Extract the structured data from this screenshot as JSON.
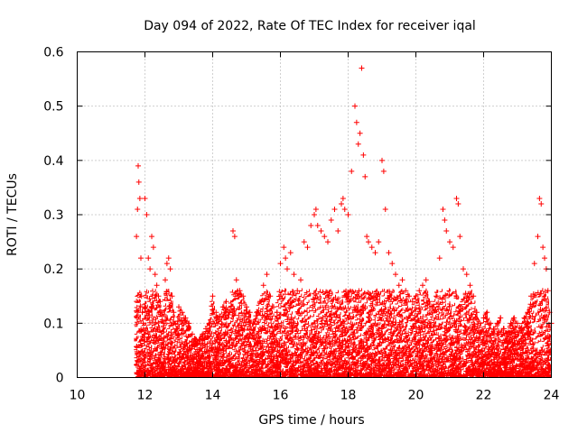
{
  "chart_data": {
    "type": "scatter",
    "title": "Day 094 of 2022, Rate Of TEC Index for receiver iqal",
    "xlabel": "GPS time / hours",
    "ylabel": "ROTI / TECUs",
    "xlim": [
      10,
      24
    ],
    "ylim": [
      0,
      0.6
    ],
    "xticks": [
      10,
      12,
      14,
      16,
      18,
      20,
      22,
      24
    ],
    "yticks": [
      0,
      0.1,
      0.2,
      0.3,
      0.4,
      0.5,
      0.6
    ],
    "xtick_labels": [
      "10",
      "12",
      "14",
      "16",
      "18",
      "20",
      "22",
      "24"
    ],
    "ytick_labels": [
      "0",
      "0.1",
      "0.2",
      "0.3",
      "0.4",
      "0.5",
      "0.6"
    ],
    "grid": true,
    "marker": "+",
    "marker_color": "#ff0000",
    "series": [
      {
        "x": [
          11.75,
          11.78,
          11.8,
          11.82,
          11.85,
          11.88,
          11.9,
          11.92,
          11.95,
          11.98,
          12.0,
          12.05,
          12.1,
          12.15,
          12.2,
          12.25,
          12.3,
          12.35,
          12.4,
          12.45,
          12.5,
          12.55,
          12.6,
          12.65,
          12.7,
          12.75,
          12.8,
          12.85,
          12.9,
          12.95,
          13.0,
          13.1,
          13.2,
          13.3,
          13.4,
          13.5,
          13.6,
          13.7,
          13.8,
          13.9,
          14.0,
          14.1,
          14.2,
          14.3,
          14.4,
          14.5,
          14.6,
          14.65,
          14.7,
          14.8,
          14.9,
          15.0,
          15.1,
          15.2,
          15.3,
          15.4,
          15.5,
          15.6,
          15.7,
          15.8,
          15.9,
          16.0,
          16.1,
          16.15,
          16.2,
          16.3,
          16.4,
          16.5,
          16.6,
          16.7,
          16.8,
          16.9,
          17.0,
          17.05,
          17.1,
          17.2,
          17.3,
          17.4,
          17.5,
          17.6,
          17.7,
          17.8,
          17.85,
          17.9,
          18.0,
          18.1,
          18.2,
          18.25,
          18.3,
          18.35,
          18.4,
          18.45,
          18.5,
          18.55,
          18.6,
          18.7,
          18.8,
          18.9,
          19.0,
          19.05,
          19.1,
          19.2,
          19.3,
          19.4,
          19.5,
          19.6,
          19.7,
          19.8,
          19.9,
          20.0,
          20.1,
          20.2,
          20.3,
          20.4,
          20.5,
          20.6,
          20.7,
          20.8,
          20.85,
          20.9,
          21.0,
          21.1,
          21.2,
          21.25,
          21.3,
          21.4,
          21.5,
          21.6,
          21.7,
          21.8,
          21.9,
          22.0,
          22.1,
          22.2,
          22.3,
          22.4,
          22.5,
          22.6,
          22.7,
          22.8,
          22.9,
          23.0,
          23.1,
          23.2,
          23.3,
          23.4,
          23.5,
          23.6,
          23.65,
          23.7,
          23.75,
          23.8,
          23.85,
          23.9,
          23.95,
          24.0
        ],
        "y": [
          0.26,
          0.31,
          0.39,
          0.36,
          0.33,
          0.22,
          0.15,
          0.12,
          0.1,
          0.08,
          0.33,
          0.3,
          0.22,
          0.2,
          0.26,
          0.24,
          0.19,
          0.17,
          0.15,
          0.14,
          0.12,
          0.1,
          0.18,
          0.21,
          0.22,
          0.2,
          0.15,
          0.12,
          0.1,
          0.09,
          0.13,
          0.12,
          0.11,
          0.1,
          0.08,
          0.07,
          0.07,
          0.08,
          0.09,
          0.1,
          0.15,
          0.12,
          0.11,
          0.13,
          0.14,
          0.12,
          0.27,
          0.26,
          0.18,
          0.16,
          0.15,
          0.13,
          0.12,
          0.1,
          0.12,
          0.14,
          0.17,
          0.19,
          0.15,
          0.13,
          0.12,
          0.21,
          0.24,
          0.22,
          0.2,
          0.23,
          0.19,
          0.16,
          0.18,
          0.25,
          0.24,
          0.28,
          0.3,
          0.31,
          0.28,
          0.27,
          0.26,
          0.25,
          0.29,
          0.31,
          0.27,
          0.32,
          0.33,
          0.31,
          0.3,
          0.38,
          0.5,
          0.47,
          0.43,
          0.45,
          0.57,
          0.41,
          0.37,
          0.26,
          0.25,
          0.24,
          0.23,
          0.25,
          0.4,
          0.38,
          0.31,
          0.23,
          0.21,
          0.19,
          0.17,
          0.18,
          0.16,
          0.15,
          0.14,
          0.15,
          0.16,
          0.17,
          0.18,
          0.14,
          0.13,
          0.15,
          0.22,
          0.31,
          0.29,
          0.27,
          0.25,
          0.24,
          0.33,
          0.32,
          0.26,
          0.2,
          0.19,
          0.17,
          0.15,
          0.12,
          0.1,
          0.11,
          0.12,
          0.1,
          0.09,
          0.1,
          0.11,
          0.09,
          0.08,
          0.1,
          0.11,
          0.1,
          0.09,
          0.11,
          0.12,
          0.15,
          0.21,
          0.26,
          0.33,
          0.32,
          0.24,
          0.22,
          0.2,
          0.16,
          0.12,
          0.1
        ]
      }
    ]
  }
}
